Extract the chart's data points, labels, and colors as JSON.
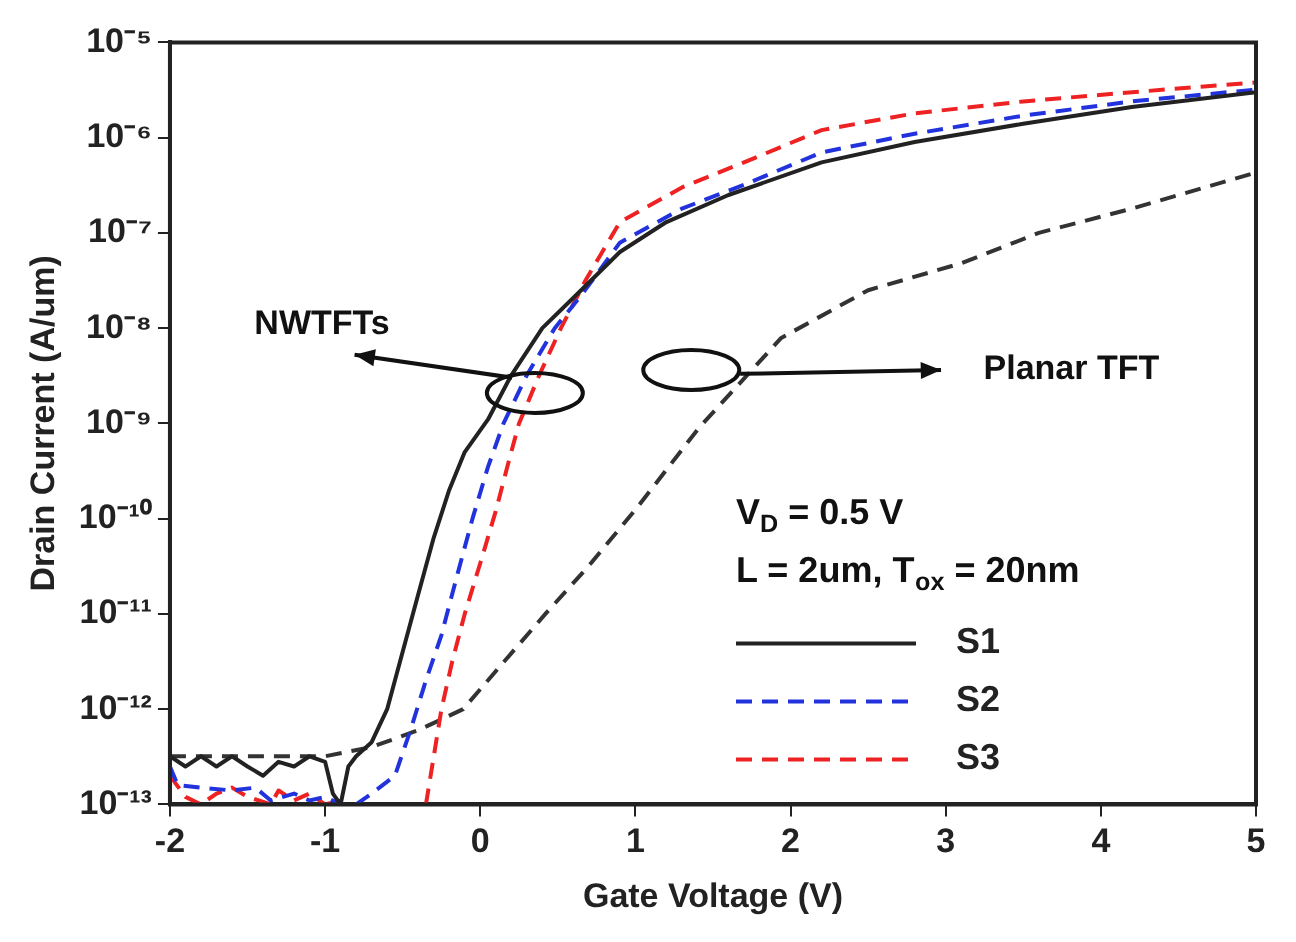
{
  "chart_data": {
    "type": "line",
    "xlabel": "Gate Voltage (V)",
    "ylabel": "Drain Current (A/um)",
    "xlim": [
      -2,
      5
    ],
    "xticks": [
      -2,
      -1,
      0,
      1,
      2,
      3,
      4,
      5
    ],
    "ylim": [
      1e-13,
      1e-05
    ],
    "log": "y",
    "yticks": [
      {
        "value": 1e-13,
        "label": "10⁻¹³"
      },
      {
        "value": 1e-12,
        "label": "10⁻¹²"
      },
      {
        "value": 1e-11,
        "label": "10⁻¹¹"
      },
      {
        "value": 1e-10,
        "label": "10⁻¹⁰"
      },
      {
        "value": 1e-09,
        "label": "10⁻⁹"
      },
      {
        "value": 1e-08,
        "label": "10⁻⁸"
      },
      {
        "value": 1e-07,
        "label": "10⁻⁷"
      },
      {
        "value": 1e-06,
        "label": "10⁻⁶"
      },
      {
        "value": 1e-05,
        "label": "10⁻⁵"
      }
    ],
    "grid": false,
    "legend": "bottom right",
    "marker": "none",
    "annotations": [
      "NWTFTs",
      "Planar TFT",
      "V$_{D}$ = 0.5 V",
      "L = 2um, T$_{ox}$ = 20nm"
    ],
    "series": [
      {
        "name": "S1",
        "color": "#222222",
        "line_style": "solid",
        "x": [
          -2,
          -1.9,
          -1.8,
          -1.7,
          -1.6,
          -1.5,
          -1.4,
          -1.3,
          -1.2,
          -1.1,
          -1.0,
          -0.95,
          -0.9,
          -0.85,
          -0.8,
          -0.7,
          -0.6,
          -0.5,
          -0.4,
          -0.3,
          -0.2,
          -0.1,
          0.05,
          0.2,
          0.4,
          0.65,
          0.9,
          1.2,
          1.6,
          2.2,
          2.8,
          3.5,
          4.2,
          5
        ],
        "values": [
          3.2e-13,
          2.5e-13,
          3.2e-13,
          2.5e-13,
          3.2e-13,
          2.5e-13,
          2e-13,
          2.8e-13,
          2.5e-13,
          3.2e-13,
          2.8e-13,
          1.3e-13,
          1e-13,
          2.5e-13,
          3.2e-13,
          4.5e-13,
          1e-12,
          4e-12,
          1.6e-11,
          6.3e-11,
          2e-10,
          5e-10,
          1.1e-09,
          3.2e-09,
          1e-08,
          2.5e-08,
          6.3e-08,
          1.3e-07,
          2.5e-07,
          5.5e-07,
          9e-07,
          1.4e-06,
          2.1e-06,
          3e-06
        ]
      },
      {
        "name": "S2",
        "color": "#2233dd",
        "line_style": "dashed",
        "x": [
          -2,
          -1.95,
          -1.8,
          -1.6,
          -1.45,
          -1.35,
          -1.2,
          -1.1,
          -1.0,
          -0.9,
          -0.8,
          -0.7,
          -0.55,
          -0.45,
          -0.35,
          -0.25,
          -0.15,
          -0.05,
          0.05,
          0.15,
          0.3,
          0.48,
          0.65,
          0.9,
          1.3,
          1.7,
          2.2,
          2.8,
          3.5,
          4.2,
          5
        ],
        "values": [
          2.5e-13,
          1.6e-13,
          1.5e-13,
          1.4e-13,
          1.5e-13,
          1.1e-13,
          1.3e-13,
          1.1e-13,
          1.2e-13,
          1e-13,
          1e-13,
          1.3e-13,
          2e-13,
          6e-13,
          2e-12,
          6e-12,
          2.5e-11,
          1e-10,
          3.5e-10,
          1e-09,
          3.2e-09,
          1e-08,
          2.2e-08,
          7.9e-08,
          1.8e-07,
          3.2e-07,
          7e-07,
          1.1e-06,
          1.7e-06,
          2.4e-06,
          3.2e-06
        ]
      },
      {
        "name": "S3",
        "color": "#ee2222",
        "line_style": "dashed",
        "x": [
          -2,
          -1.9,
          -1.8,
          -1.7,
          -1.6,
          -1.5,
          -1.35,
          -1.3,
          -1.2,
          -1.1,
          -1.0,
          -0.9,
          -0.6,
          -0.35,
          -0.25,
          -0.18,
          -0.1,
          0,
          0.1,
          0.18,
          0.25,
          0.38,
          0.52,
          0.68,
          0.9,
          1.3,
          1.7,
          2.2,
          2.8,
          3.5,
          4.2,
          5
        ],
        "values": [
          2e-13,
          1.2e-13,
          1e-13,
          1.3e-13,
          1.5e-13,
          1.2e-13,
          1e-13,
          1.4e-13,
          1.1e-13,
          1.3e-13,
          1e-13,
          1.1e-13,
          null,
          1e-13,
          1e-12,
          3.2e-12,
          1e-11,
          3.4e-11,
          1.2e-10,
          3.8e-10,
          1e-09,
          3.2e-09,
          1e-08,
          3.2e-08,
          1.3e-07,
          3e-07,
          5.5e-07,
          1.2e-06,
          1.8e-06,
          2.4e-06,
          3e-06,
          3.8e-06
        ]
      },
      {
        "color": "#333333",
        "line_style": "dashed",
        "x": [
          -2,
          -1.5,
          -1,
          -0.7,
          -0.4,
          -0.11,
          0.1,
          0.42,
          0.7,
          1.01,
          1.41,
          1.94,
          2.5,
          3.1,
          3.6,
          4.2,
          5
        ],
        "values": [
          3.2e-13,
          3.2e-13,
          3.2e-13,
          4e-13,
          6e-13,
          1e-12,
          2.5e-12,
          1e-11,
          3.2e-11,
          1.3e-10,
          9e-10,
          7.9e-09,
          2.5e-08,
          4.8e-08,
          1e-07,
          1.8e-07,
          4.3e-07
        ]
      }
    ]
  }
}
